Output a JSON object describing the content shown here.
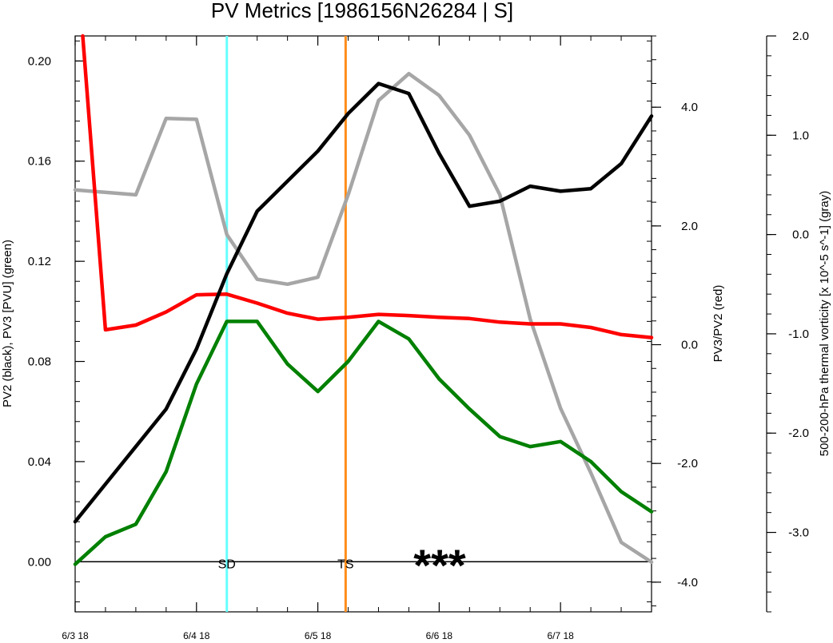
{
  "chart_data": {
    "type": "line",
    "title": "PV Metrics [1986156N26284 | S]",
    "x_ticks": [
      {
        "t": 0,
        "label": "6/3 18"
      },
      {
        "t": 24,
        "label": "6/4 18"
      },
      {
        "t": 48,
        "label": "6/5 18"
      },
      {
        "t": 72,
        "label": "6/6 18"
      },
      {
        "t": 96,
        "label": "6/7 18"
      }
    ],
    "x_units": "hours from 6/3 18",
    "xlim": [
      0,
      114
    ],
    "axes": {
      "left": {
        "label": "PV2 (black), PV3 [PVU] (green)",
        "ylim": [
          -0.02,
          0.21
        ],
        "ticks": [
          "0.00",
          "0.04",
          "0.08",
          "0.12",
          "0.16",
          "0.20"
        ],
        "tick_values": [
          0,
          0.04,
          0.08,
          0.12,
          0.16,
          0.2
        ],
        "minor_step": 0.008
      },
      "right1": {
        "label": "PV3/PV2 (red)",
        "ylim": [
          -4.5,
          5.2
        ],
        "ticks": [
          "-4.0",
          "-2.0",
          "0.0",
          "2.0",
          "4.0"
        ],
        "tick_values": [
          -4,
          -2,
          0,
          2,
          4
        ],
        "minor_step": 0.4
      },
      "right2": {
        "label": "500-200-hPa thermal vorticity [x 10^-5 s^-1] (gray)",
        "ylim": [
          -3.8,
          2.0
        ],
        "ticks": [
          "-3.0",
          "-2.0",
          "-1.0",
          "0.0",
          "1.0",
          "2.0"
        ],
        "tick_values": [
          -3,
          -2,
          -1,
          0,
          1,
          2
        ],
        "minor_step": 0.2
      }
    },
    "series": [
      {
        "axis": "left",
        "color": "#000000",
        "x": [
          0,
          6,
          12,
          18,
          24,
          30,
          36,
          42,
          48,
          54,
          60,
          66,
          72,
          78,
          84,
          90,
          96,
          102,
          108,
          114
        ],
        "y": [
          0.016,
          0.031,
          0.046,
          0.061,
          0.085,
          0.115,
          0.14,
          0.152,
          0.164,
          0.179,
          0.191,
          0.187,
          0.163,
          0.142,
          0.144,
          0.15,
          0.148,
          0.149,
          0.159,
          0.178
        ]
      },
      {
        "axis": "left",
        "color": "#008000",
        "x": [
          0,
          6,
          12,
          18,
          24,
          30,
          36,
          42,
          48,
          54,
          60,
          66,
          72,
          78,
          84,
          90,
          96,
          102,
          108,
          114
        ],
        "y": [
          -0.001,
          0.01,
          0.015,
          0.036,
          0.071,
          0.096,
          0.096,
          0.079,
          0.068,
          0.08,
          0.096,
          0.089,
          0.073,
          0.061,
          0.05,
          0.046,
          0.048,
          0.04,
          0.028,
          0.02
        ]
      },
      {
        "axis": "right1",
        "color": "#ff0000",
        "x": [
          1.5,
          6,
          12,
          18,
          24,
          30,
          36,
          42,
          48,
          54,
          60,
          66,
          72,
          78,
          84,
          90,
          96,
          102,
          108,
          114
        ],
        "y": [
          5.2,
          0.25,
          0.33,
          0.55,
          0.84,
          0.85,
          0.7,
          0.53,
          0.43,
          0.46,
          0.51,
          0.49,
          0.46,
          0.44,
          0.38,
          0.35,
          0.35,
          0.29,
          0.17,
          0.12
        ]
      },
      {
        "axis": "right2",
        "color": "#a6a6a6",
        "x": [
          0,
          12,
          18,
          24,
          30,
          36,
          42,
          48,
          54,
          60,
          66,
          72,
          78,
          84,
          90,
          96,
          102,
          108,
          114
        ],
        "y": [
          0.45,
          0.4,
          1.17,
          1.16,
          0.0,
          -0.45,
          -0.5,
          -0.43,
          0.4,
          1.35,
          1.62,
          1.4,
          1.0,
          0.4,
          -0.85,
          -1.75,
          -2.4,
          -3.1,
          -3.3
        ]
      }
    ],
    "vlines": [
      {
        "t": 30,
        "color": "#66ffff",
        "label": "SD"
      },
      {
        "t": 53.5,
        "color": "#ff8c1a",
        "label": "TS"
      }
    ],
    "zero_line": 0,
    "markers": {
      "text": "***"
    },
    "grid": false,
    "legend": "none"
  }
}
